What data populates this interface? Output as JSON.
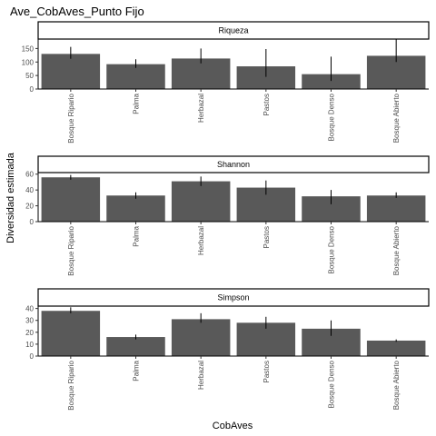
{
  "chart_data": {
    "type": "bar",
    "title": "Ave_CobAves_Punto Fijo",
    "xlabel": "CobAves",
    "ylabel": "Diversidad estimada",
    "categories": [
      "Bosque Ripario",
      "Palma",
      "Herbazal",
      "Pastos",
      "Bosque Denso",
      "Bosque Abierto"
    ],
    "grid": false,
    "bar_color": "#595959",
    "facets": [
      {
        "name": "Riqueza",
        "ylim": [
          0,
          185
        ],
        "yticks": [
          0,
          50,
          100,
          150
        ],
        "values": [
          130,
          92,
          113,
          84,
          55,
          123
        ],
        "error_low": [
          112,
          78,
          95,
          45,
          30,
          100
        ],
        "error_high": [
          156,
          110,
          150,
          148,
          120,
          185
        ]
      },
      {
        "name": "Shannon",
        "ylim": [
          0,
          62
        ],
        "yticks": [
          0,
          20,
          40,
          60
        ],
        "values": [
          56,
          33,
          51,
          43,
          32,
          33
        ],
        "error_low": [
          53,
          29,
          45,
          34,
          22,
          30
        ],
        "error_high": [
          59,
          37,
          57,
          52,
          40,
          37
        ]
      },
      {
        "name": "Simpson",
        "ylim": [
          0,
          42
        ],
        "yticks": [
          0,
          10,
          20,
          30,
          40
        ],
        "values": [
          38,
          16,
          31,
          28,
          23,
          13
        ],
        "error_low": [
          36,
          14,
          28,
          23,
          17,
          12
        ],
        "error_high": [
          41,
          18,
          36,
          33,
          30,
          14
        ]
      }
    ]
  }
}
